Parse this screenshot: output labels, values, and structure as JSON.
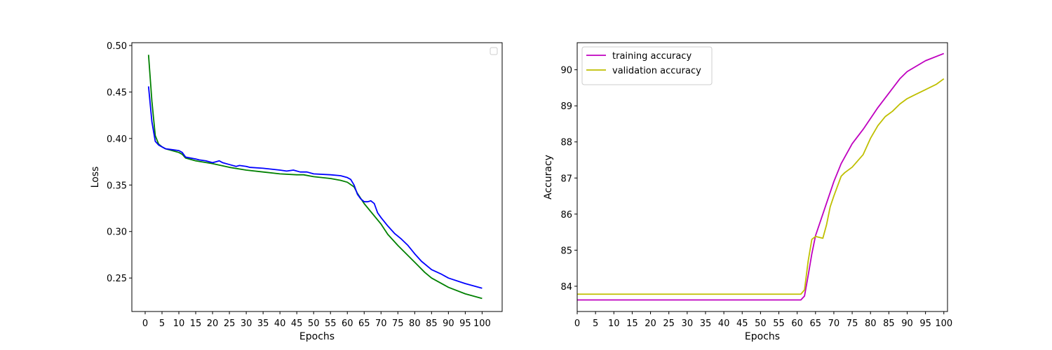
{
  "chart_data": [
    {
      "type": "line",
      "title": "",
      "xlabel": "Epochs",
      "ylabel": "Loss",
      "xlim": [
        -3.95,
        105.95
      ],
      "ylim": [
        0.214,
        0.503
      ],
      "xticks": [
        0,
        5,
        10,
        15,
        20,
        25,
        30,
        35,
        40,
        45,
        50,
        55,
        60,
        65,
        70,
        75,
        80,
        85,
        90,
        95,
        100
      ],
      "yticks": [
        0.25,
        0.3,
        0.35,
        0.4,
        0.45,
        0.5
      ],
      "ytick_labels": [
        "0.25",
        "0.30",
        "0.35",
        "0.40",
        "0.45",
        "0.50"
      ],
      "grid": false,
      "legend": {
        "position": "top-right",
        "entries": []
      },
      "series": [
        {
          "color": "#008000",
          "points": [
            [
              1,
              0.49
            ],
            [
              2,
              0.44
            ],
            [
              3,
              0.403
            ],
            [
              4,
              0.394
            ],
            [
              5,
              0.391
            ],
            [
              6,
              0.389
            ],
            [
              8,
              0.387
            ],
            [
              10,
              0.385
            ],
            [
              11,
              0.383
            ],
            [
              12,
              0.379
            ],
            [
              15,
              0.376
            ],
            [
              20,
              0.373
            ],
            [
              25,
              0.369
            ],
            [
              30,
              0.366
            ],
            [
              35,
              0.364
            ],
            [
              40,
              0.362
            ],
            [
              45,
              0.361
            ],
            [
              47,
              0.361
            ],
            [
              50,
              0.359
            ],
            [
              55,
              0.357
            ],
            [
              58,
              0.355
            ],
            [
              60,
              0.353
            ],
            [
              62,
              0.348
            ],
            [
              63,
              0.341
            ],
            [
              65,
              0.33
            ],
            [
              70,
              0.308
            ],
            [
              72,
              0.297
            ],
            [
              75,
              0.285
            ],
            [
              80,
              0.267
            ],
            [
              83,
              0.256
            ],
            [
              85,
              0.25
            ],
            [
              90,
              0.24
            ],
            [
              95,
              0.233
            ],
            [
              100,
              0.228
            ]
          ]
        },
        {
          "color": "#0000ff",
          "points": [
            [
              1,
              0.456
            ],
            [
              2,
              0.418
            ],
            [
              3,
              0.397
            ],
            [
              4,
              0.393
            ],
            [
              5,
              0.391
            ],
            [
              6,
              0.389
            ],
            [
              8,
              0.388
            ],
            [
              10,
              0.387
            ],
            [
              11,
              0.385
            ],
            [
              12,
              0.38
            ],
            [
              15,
              0.378
            ],
            [
              16,
              0.377
            ],
            [
              18,
              0.376
            ],
            [
              20,
              0.374
            ],
            [
              21,
              0.375
            ],
            [
              22,
              0.376
            ],
            [
              23,
              0.374
            ],
            [
              25,
              0.372
            ],
            [
              27,
              0.37
            ],
            [
              28,
              0.371
            ],
            [
              30,
              0.37
            ],
            [
              31,
              0.369
            ],
            [
              35,
              0.368
            ],
            [
              40,
              0.366
            ],
            [
              42,
              0.365
            ],
            [
              44,
              0.366
            ],
            [
              46,
              0.364
            ],
            [
              48,
              0.364
            ],
            [
              50,
              0.362
            ],
            [
              55,
              0.361
            ],
            [
              58,
              0.36
            ],
            [
              60,
              0.358
            ],
            [
              61,
              0.356
            ],
            [
              62,
              0.35
            ],
            [
              63,
              0.34
            ],
            [
              64,
              0.335
            ],
            [
              65,
              0.332
            ],
            [
              66,
              0.332
            ],
            [
              67,
              0.333
            ],
            [
              68,
              0.33
            ],
            [
              69,
              0.32
            ],
            [
              70,
              0.315
            ],
            [
              72,
              0.306
            ],
            [
              74,
              0.298
            ],
            [
              76,
              0.292
            ],
            [
              78,
              0.285
            ],
            [
              80,
              0.276
            ],
            [
              82,
              0.268
            ],
            [
              85,
              0.259
            ],
            [
              88,
              0.254
            ],
            [
              90,
              0.25
            ],
            [
              95,
              0.244
            ],
            [
              100,
              0.239
            ]
          ]
        }
      ]
    },
    {
      "type": "line",
      "title": "",
      "xlabel": "Epochs",
      "ylabel": "Accuracy",
      "xlim": [
        0,
        101
      ],
      "ylim": [
        83.3,
        90.75
      ],
      "xticks": [
        0,
        5,
        10,
        15,
        20,
        25,
        30,
        35,
        40,
        45,
        50,
        55,
        60,
        65,
        70,
        75,
        80,
        85,
        90,
        95,
        100
      ],
      "yticks": [
        84,
        85,
        86,
        87,
        88,
        89,
        90
      ],
      "ytick_labels": [
        "84",
        "85",
        "86",
        "87",
        "88",
        "89",
        "90"
      ],
      "grid": false,
      "legend": {
        "position": "top-left",
        "entries": [
          "training accuracy",
          "validation accuracy"
        ]
      },
      "series": [
        {
          "name": "training accuracy",
          "color": "#bf00bf",
          "points": [
            [
              0,
              83.62
            ],
            [
              61,
              83.62
            ],
            [
              62,
              83.73
            ],
            [
              63,
              84.3
            ],
            [
              64,
              84.9
            ],
            [
              65,
              85.4
            ],
            [
              67,
              86.0
            ],
            [
              70,
              86.9
            ],
            [
              72,
              87.4
            ],
            [
              75,
              87.95
            ],
            [
              78,
              88.35
            ],
            [
              80,
              88.65
            ],
            [
              82,
              88.95
            ],
            [
              85,
              89.35
            ],
            [
              88,
              89.75
            ],
            [
              90,
              89.95
            ],
            [
              95,
              90.25
            ],
            [
              100,
              90.45
            ]
          ]
        },
        {
          "name": "validation accuracy",
          "color": "#bfbf00",
          "points": [
            [
              0,
              83.78
            ],
            [
              61,
              83.78
            ],
            [
              62,
              83.9
            ],
            [
              63,
              84.7
            ],
            [
              64,
              85.3
            ],
            [
              65,
              85.38
            ],
            [
              67,
              85.33
            ],
            [
              68,
              85.7
            ],
            [
              69,
              86.2
            ],
            [
              70,
              86.5
            ],
            [
              72,
              87.05
            ],
            [
              73,
              87.15
            ],
            [
              75,
              87.3
            ],
            [
              78,
              87.65
            ],
            [
              80,
              88.1
            ],
            [
              82,
              88.45
            ],
            [
              84,
              88.7
            ],
            [
              86,
              88.85
            ],
            [
              88,
              89.05
            ],
            [
              90,
              89.2
            ],
            [
              92,
              89.3
            ],
            [
              95,
              89.45
            ],
            [
              98,
              89.6
            ],
            [
              100,
              89.75
            ]
          ]
        }
      ]
    }
  ]
}
